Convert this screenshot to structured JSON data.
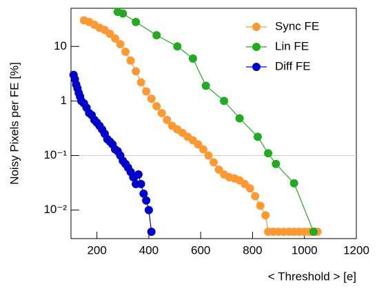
{
  "chart_data": {
    "type": "line",
    "xlabel": "< Threshold > [e]",
    "ylabel": "Noisy Pixels per FE [%]",
    "xlim": [
      100,
      1200
    ],
    "xticks": [
      200,
      400,
      600,
      800,
      1000,
      1200
    ],
    "ylim": [
      0.003,
      50
    ],
    "ylog": true,
    "yticks": [
      {
        "value": 0.01,
        "label": "10⁻²"
      },
      {
        "value": 0.1,
        "label": "10⁻¹"
      },
      1,
      10
    ],
    "reference_line": 0.1,
    "legend": "top right",
    "series": [
      {
        "name": "Sync FE",
        "color": "#ff9933",
        "x": [
          150,
          170,
          190,
          210,
          230,
          250,
          270,
          290,
          310,
          330,
          350,
          370,
          390,
          410,
          430,
          450,
          470,
          490,
          510,
          530,
          550,
          570,
          590,
          610,
          630,
          650,
          670,
          690,
          710,
          730,
          750,
          770,
          790,
          810,
          830,
          850,
          860,
          880,
          900,
          920,
          940,
          960,
          980,
          1000,
          1020,
          1040,
          1050
        ],
        "values": [
          30,
          28,
          25,
          22,
          20,
          17,
          14,
          11,
          8,
          5.5,
          3.5,
          2.2,
          1.5,
          1.1,
          0.8,
          0.6,
          0.45,
          0.35,
          0.3,
          0.26,
          0.22,
          0.19,
          0.16,
          0.13,
          0.1,
          0.075,
          0.055,
          0.045,
          0.04,
          0.038,
          0.035,
          0.03,
          0.025,
          0.018,
          0.012,
          0.008,
          0.004,
          0.004,
          0.004,
          0.004,
          0.004,
          0.004,
          0.004,
          0.004,
          0.004,
          0.004,
          0.004
        ]
      },
      {
        "name": "Lin FE",
        "color": "#22aa22",
        "x": [
          280,
          300,
          350,
          430,
          510,
          570,
          620,
          690,
          750,
          820,
          860,
          890,
          960,
          1035
        ],
        "values": [
          43,
          40,
          28,
          16,
          10,
          6,
          1.9,
          1,
          0.48,
          0.22,
          0.11,
          0.07,
          0.031,
          0.004
        ]
      },
      {
        "name": "Diff FE",
        "color": "#0000cc",
        "x": [
          110,
          115,
          120,
          125,
          130,
          135,
          140,
          150,
          160,
          170,
          180,
          190,
          200,
          210,
          220,
          230,
          240,
          250,
          260,
          270,
          280,
          290,
          300,
          310,
          320,
          330,
          340,
          350,
          360,
          370,
          380,
          390,
          400,
          410
        ],
        "values": [
          3,
          2.5,
          2,
          1.7,
          1.4,
          1.2,
          1.0,
          0.9,
          0.75,
          0.6,
          0.55,
          0.45,
          0.4,
          0.35,
          0.3,
          0.25,
          0.2,
          0.18,
          0.16,
          0.13,
          0.12,
          0.1,
          0.08,
          0.07,
          0.06,
          0.05,
          0.04,
          0.03,
          0.045,
          0.03,
          0.02,
          0.015,
          0.01,
          0.004
        ]
      }
    ]
  }
}
